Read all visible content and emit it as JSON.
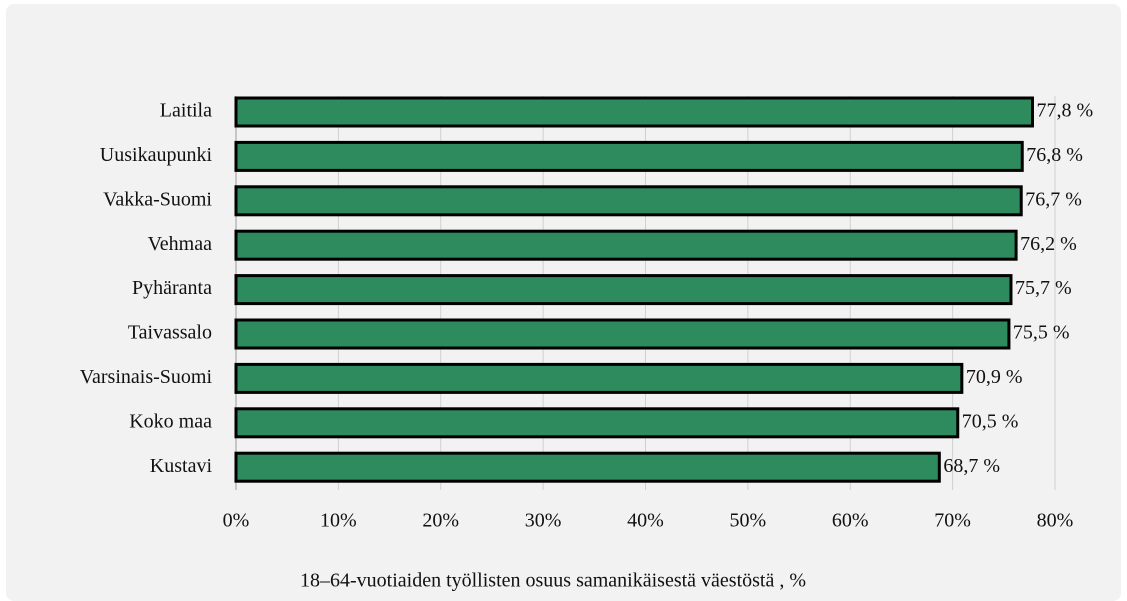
{
  "chart_data": {
    "type": "barh",
    "x_label": "18–64-vuotiaiden työllisten osuus samanikäisestä väestöstä , %",
    "categories": [
      "Laitila",
      "Uusikaupunki",
      "Vakka-Suomi",
      "Vehmaa",
      "Pyhäranta",
      "Taivassalo",
      "Varsinais-Suomi",
      "Koko maa",
      "Kustavi"
    ],
    "values": [
      77.8,
      76.8,
      76.7,
      76.2,
      75.7,
      75.5,
      70.9,
      70.5,
      68.7
    ],
    "value_labels": [
      "77,8 %",
      "76,8 %",
      "76,7 %",
      "76,2 %",
      "75,7 %",
      "75,5 %",
      "70,9 %",
      "70,5 %",
      "68,7 %"
    ],
    "color": "#2e8b5e",
    "xlim": [
      0,
      80
    ],
    "xticks": [
      {
        "value": 0,
        "label": "0%"
      },
      {
        "value": 10,
        "label": "10%"
      },
      {
        "value": 20,
        "label": "20%"
      },
      {
        "value": 30,
        "label": "30%"
      },
      {
        "value": 40,
        "label": "40%"
      },
      {
        "value": 50,
        "label": "50%"
      },
      {
        "value": 60,
        "label": "60%"
      },
      {
        "value": 70,
        "label": "70%"
      },
      {
        "value": 80,
        "label": "80%"
      }
    ],
    "grid": true
  }
}
